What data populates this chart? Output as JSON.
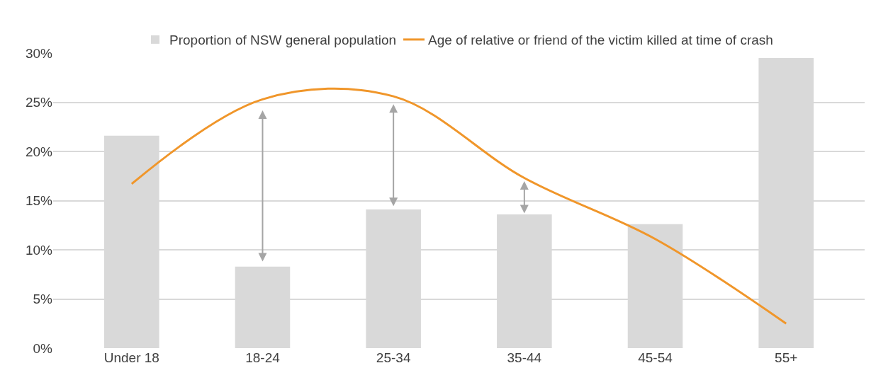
{
  "chart_data": {
    "type": "bar",
    "categories": [
      "Under 18",
      "18-24",
      "25-34",
      "35-44",
      "45-54",
      "55+"
    ],
    "series": [
      {
        "name": "Proportion of NSW general population",
        "color": "#d9d9d9",
        "values": [
          21.6,
          8.3,
          14.1,
          13.6,
          12.6,
          29.5
        ]
      },
      {
        "name": "Age of relative or friend of the victim killed at time of crash",
        "type": "line",
        "color": "#f0962a",
        "values": [
          16.7,
          25.3,
          25.6,
          17.3,
          11.1,
          2.5
        ]
      }
    ],
    "ylim": [
      0,
      30
    ],
    "yticks": [
      {
        "value": 0,
        "label": "0%"
      },
      {
        "value": 5,
        "label": "5%"
      },
      {
        "value": 10,
        "label": "10%"
      },
      {
        "value": 15,
        "label": "15%"
      },
      {
        "value": 20,
        "label": "20%"
      },
      {
        "value": 25,
        "label": "25%"
      },
      {
        "value": 30,
        "label": "30%"
      }
    ],
    "grid": "y",
    "legend": "top"
  }
}
